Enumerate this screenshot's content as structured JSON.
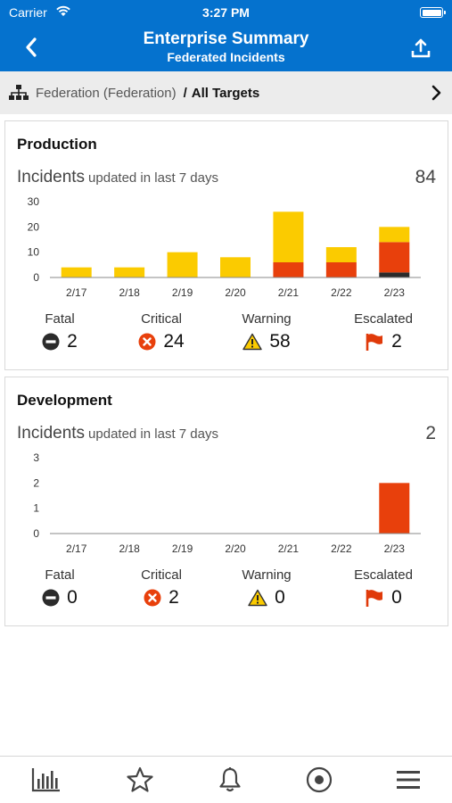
{
  "status_bar": {
    "carrier": "Carrier",
    "time": "3:27 PM"
  },
  "nav": {
    "title": "Enterprise Summary",
    "subtitle": "Federated Incidents"
  },
  "breadcrumb": {
    "federation": "Federation (Federation)",
    "separator": "/",
    "target": "All Targets"
  },
  "colors": {
    "brand": "#0572ce",
    "fatal": "#2b2b2b",
    "critical": "#e8400c",
    "warning": "#fbcb00",
    "escalated": "#e03a0a"
  },
  "cards": [
    {
      "title": "Production",
      "incidents_label": "Incidents",
      "incidents_sub": "updated in last 7 days",
      "total": "84",
      "severity": {
        "fatal": {
          "label": "Fatal",
          "value": "2"
        },
        "critical": {
          "label": "Critical",
          "value": "24"
        },
        "warning": {
          "label": "Warning",
          "value": "58"
        },
        "escalated": {
          "label": "Escalated",
          "value": "2"
        }
      }
    },
    {
      "title": "Development",
      "incidents_label": "Incidents",
      "incidents_sub": "updated in last 7 days",
      "total": "2",
      "severity": {
        "fatal": {
          "label": "Fatal",
          "value": "0"
        },
        "critical": {
          "label": "Critical",
          "value": "2"
        },
        "warning": {
          "label": "Warning",
          "value": "0"
        },
        "escalated": {
          "label": "Escalated",
          "value": "0"
        }
      }
    }
  ],
  "chart_data": [
    {
      "type": "bar",
      "stacked": true,
      "categories": [
        "2/17",
        "2/18",
        "2/19",
        "2/20",
        "2/21",
        "2/22",
        "2/23"
      ],
      "yticks": [
        "0",
        "10",
        "20",
        "30"
      ],
      "ylim": [
        0,
        30
      ],
      "series": [
        {
          "name": "Fatal",
          "color": "#2b2b2b",
          "values": [
            0,
            0,
            0,
            0,
            0,
            0,
            2
          ]
        },
        {
          "name": "Critical",
          "color": "#e8400c",
          "values": [
            0,
            0,
            0,
            0,
            6,
            6,
            12
          ]
        },
        {
          "name": "Warning",
          "color": "#fbcb00",
          "values": [
            4,
            4,
            10,
            8,
            20,
            6,
            6
          ]
        }
      ]
    },
    {
      "type": "bar",
      "stacked": true,
      "categories": [
        "2/17",
        "2/18",
        "2/19",
        "2/20",
        "2/21",
        "2/22",
        "2/23"
      ],
      "yticks": [
        "0",
        "1",
        "2",
        "3"
      ],
      "ylim": [
        0,
        3
      ],
      "series": [
        {
          "name": "Fatal",
          "color": "#2b2b2b",
          "values": [
            0,
            0,
            0,
            0,
            0,
            0,
            0
          ]
        },
        {
          "name": "Critical",
          "color": "#e8400c",
          "values": [
            0,
            0,
            0,
            0,
            0,
            0,
            2
          ]
        },
        {
          "name": "Warning",
          "color": "#fbcb00",
          "values": [
            0,
            0,
            0,
            0,
            0,
            0,
            0
          ]
        }
      ]
    }
  ],
  "tabs": [
    {
      "name": "dashboard",
      "icon": "bar-chart-icon"
    },
    {
      "name": "favorites",
      "icon": "star-icon"
    },
    {
      "name": "notifications",
      "icon": "bell-icon"
    },
    {
      "name": "targets",
      "icon": "target-icon"
    },
    {
      "name": "menu",
      "icon": "hamburger-icon"
    }
  ]
}
